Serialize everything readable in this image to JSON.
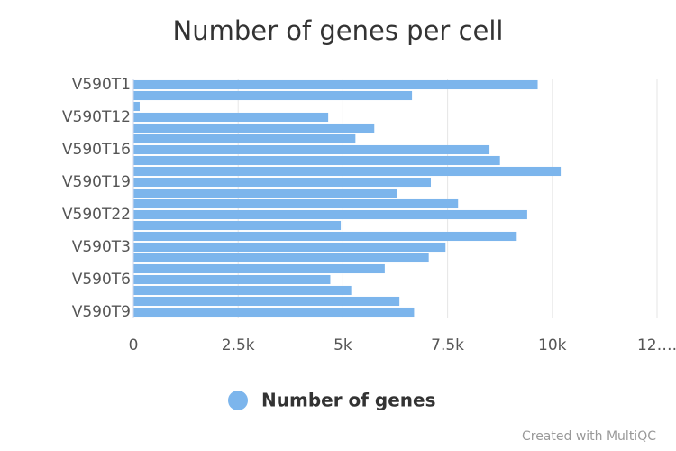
{
  "chart_data": {
    "type": "bar",
    "orientation": "horizontal",
    "title": "Number of genes per cell",
    "categories": [
      "V590T1",
      null,
      null,
      "V590T12",
      null,
      null,
      "V590T16",
      null,
      null,
      "V590T19",
      null,
      null,
      "V590T22",
      null,
      null,
      "V590T3",
      null,
      null,
      "V590T6",
      null,
      null,
      "V590T9"
    ],
    "series": [
      {
        "name": "Number of genes",
        "color": "#7cb5ec",
        "values": [
          9650,
          6650,
          150,
          4650,
          5750,
          5300,
          8500,
          8750,
          10200,
          7100,
          6300,
          7750,
          9400,
          4950,
          9150,
          7450,
          7050,
          6000,
          4700,
          5200,
          6350,
          6700
        ]
      }
    ],
    "xlim": [
      0,
      12500
    ],
    "xticks": [
      0,
      {
        "value": 2500,
        "label": "2.5k"
      },
      {
        "value": 5000,
        "label": "5k"
      },
      {
        "value": 7500,
        "label": "7.5k"
      },
      {
        "value": 10000,
        "label": "10k"
      },
      {
        "value": 12500,
        "label": "12…."
      }
    ],
    "grid": true,
    "legend": "bottom",
    "credit": "Created with MultiQC"
  }
}
